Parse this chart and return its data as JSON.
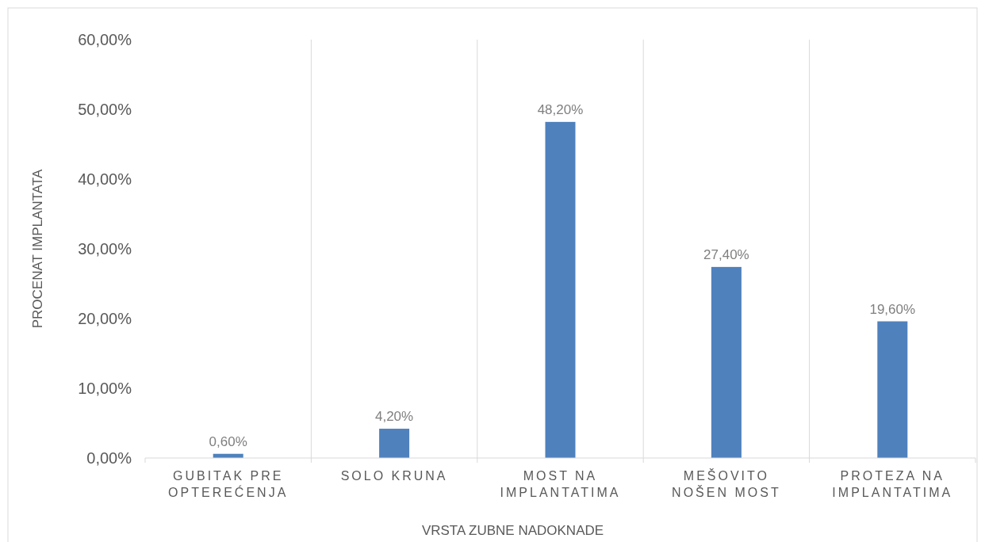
{
  "chart_data": {
    "type": "bar",
    "xlabel": "VRSTA ZUBNE NADOKNADE",
    "ylabel": "PROCENAT IMPLANTATA",
    "categories": [
      "GUBITAK PRE OPTEREĆENJA",
      "SOLO KRUNA",
      "MOST NA IMPLANTATIMA",
      "MEŠOVITO NOŠEN MOST",
      "PROTEZA NA IMPLANTATIMA"
    ],
    "values": [
      0.6,
      4.2,
      48.2,
      27.4,
      19.6
    ],
    "value_labels": [
      "0,60%",
      "4,20%",
      "48,20%",
      "27,40%",
      "19,60%"
    ],
    "color": "#4f81bd",
    "ylim": [
      0,
      60
    ],
    "yticks": [
      {
        "value": 0,
        "label": "0,00%"
      },
      {
        "value": 10,
        "label": "10,00%"
      },
      {
        "value": 20,
        "label": "20,00%"
      },
      {
        "value": 30,
        "label": "30,00%"
      },
      {
        "value": 40,
        "label": "40,00%"
      },
      {
        "value": 50,
        "label": "50,00%"
      },
      {
        "value": 60,
        "label": "60,00%"
      }
    ],
    "grid": "x"
  }
}
